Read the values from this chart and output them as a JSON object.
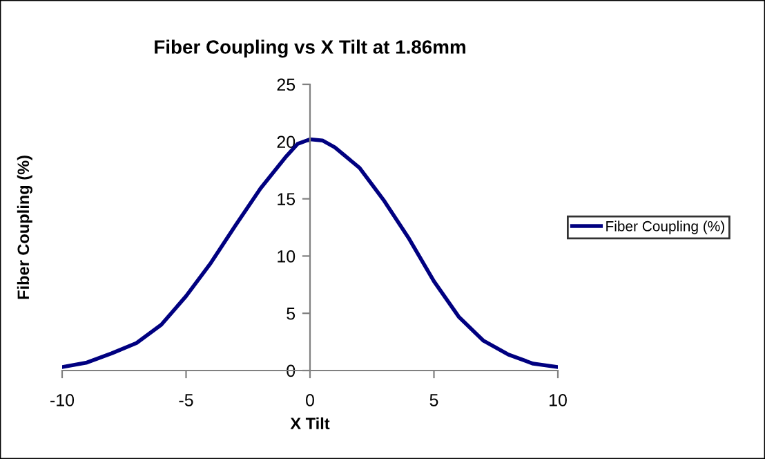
{
  "chart_data": {
    "type": "line",
    "title": "Fiber Coupling vs X Tilt at 1.86mm",
    "xlabel": "X Tilt",
    "ylabel": "Fiber Coupling (%)",
    "x": [
      -10,
      -9,
      -8,
      -7,
      -6,
      -5,
      -4,
      -3,
      -2,
      -1,
      -0.5,
      0,
      0.5,
      1,
      2,
      3,
      4,
      5,
      6,
      7,
      8,
      9,
      10
    ],
    "series": [
      {
        "name": "Fiber Coupling (%)",
        "color": "#000080",
        "values": [
          0.3,
          0.7,
          1.5,
          2.4,
          4.0,
          6.5,
          9.4,
          12.7,
          15.9,
          18.6,
          19.8,
          20.2,
          20.1,
          19.5,
          17.7,
          14.8,
          11.5,
          7.8,
          4.7,
          2.6,
          1.4,
          0.6,
          0.3
        ]
      }
    ],
    "xlim": [
      -10,
      10
    ],
    "ylim": [
      0,
      25
    ],
    "xticks": [
      -10,
      -5,
      0,
      5,
      10
    ],
    "yticks": [
      0,
      5,
      10,
      15,
      20,
      25
    ],
    "grid": false,
    "legend": "right",
    "marker": "none",
    "line_style": "solid"
  }
}
